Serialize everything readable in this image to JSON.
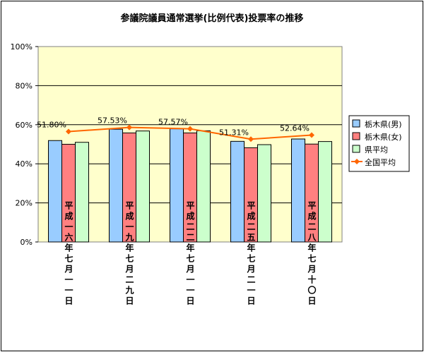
{
  "chart_data": {
    "type": "bar",
    "title": "参議院議員通常選挙(比例代表)投票率の推移",
    "categories": [
      "平成一六年七月一一日",
      "平成一九年七月二九日",
      "平成二二年七月一一日",
      "平成二五年七月二一日",
      "平成二八年七月十〇日"
    ],
    "series": [
      {
        "name": "栃木県(男)",
        "kind": "bar",
        "color": "#99ccff",
        "values": [
          51.9,
          57.7,
          57.9,
          51.5,
          52.7
        ]
      },
      {
        "name": "栃木県(女)",
        "kind": "bar",
        "color": "#ff8080",
        "values": [
          50.0,
          55.8,
          55.8,
          48.2,
          50.1
        ]
      },
      {
        "name": "県平均",
        "kind": "bar",
        "color": "#ccffcc",
        "values": [
          51.0,
          56.8,
          56.9,
          49.8,
          51.4
        ]
      },
      {
        "name": "全国平均",
        "kind": "line",
        "color": "#ff6600",
        "values": [
          56.5,
          58.6,
          57.9,
          52.6,
          54.7
        ]
      }
    ],
    "data_labels": [
      "51.80%",
      "57.53%",
      "57.57%",
      "51.31%",
      "52.64%"
    ],
    "ylim": [
      0,
      100
    ],
    "yticks": [
      "0%",
      "20%",
      "40%",
      "60%",
      "80%",
      "100%"
    ],
    "plot_background": "#ffffcc",
    "grid": true,
    "legend_position": "right"
  }
}
